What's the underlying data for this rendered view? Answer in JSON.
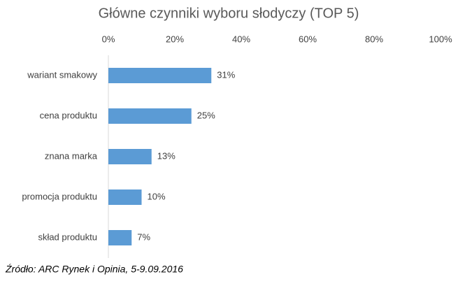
{
  "chart_data": {
    "type": "bar",
    "orientation": "horizontal",
    "title": "Główne czynniki wyboru słodyczy (TOP 5)",
    "categories": [
      "wariant smakowy",
      "cena produktu",
      "znana marka",
      "promocja produktu",
      "skład produktu"
    ],
    "values": [
      31,
      25,
      13,
      10,
      7
    ],
    "value_labels": [
      "31%",
      "25%",
      "13%",
      "10%",
      "7%"
    ],
    "color": "#5b9bd5",
    "xlim": [
      0,
      100
    ],
    "xticks": [
      {
        "value": 0,
        "label": "0%"
      },
      {
        "value": 20,
        "label": "20%"
      },
      {
        "value": 40,
        "label": "40%"
      },
      {
        "value": 60,
        "label": "60%"
      },
      {
        "value": 80,
        "label": "80%"
      },
      {
        "value": 100,
        "label": "100%"
      }
    ],
    "grid": false,
    "source": "Źródło: ARC Rynek i Opinia, 5-9.09.2016"
  }
}
